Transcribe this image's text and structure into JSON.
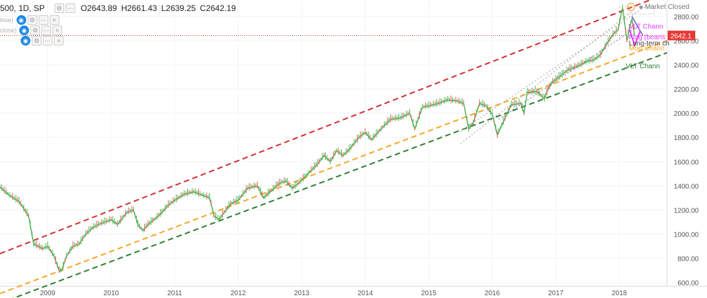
{
  "header": {
    "symbol": "500, 1D, SP",
    "open": "O2643.89",
    "high": "H2661.43",
    "low": "L2639.25",
    "close": "C2642.19",
    "indicator_rows": [
      "lose)",
      "close)",
      ""
    ]
  },
  "status": {
    "market": "Market Closed",
    "alert_icon": "!"
  },
  "price_tag": "2642.1",
  "colors": {
    "up": "#26a69a",
    "down": "#ef5350",
    "bar_green": "#4caf50",
    "red_line": "#d32f2f",
    "orange_line": "#f5a623",
    "green_line": "#2e7d32",
    "price_tag": "#e53935",
    "grid": "#f0f3fa",
    "magenta": "#e040fb",
    "purple": "#7e57c2"
  },
  "annotations": [
    {
      "text": "VLT Chann",
      "color": "#2e7d32"
    },
    {
      "text": "Long-term ch",
      "color": "#444444"
    },
    {
      "text": "Mod Chann",
      "color": "#f5a623"
    },
    {
      "text": "Flag (bearis",
      "color": "#e040fb"
    },
    {
      "text": "VLT Chann",
      "color": "#e040fb"
    }
  ],
  "chart_data": {
    "type": "line",
    "title": "500, 1D, SP",
    "yaxis": {
      "ticks": [
        600,
        800,
        1000,
        1200,
        1400,
        1600,
        1800,
        2000,
        2200,
        2400,
        2600,
        2800
      ],
      "tick_labels": [
        "600.00",
        "800.00",
        "1000.00",
        "1200.00",
        "1400.00",
        "1600.00",
        "1800.00",
        "2000.00",
        "2200.00",
        "2400.00",
        "2600.00",
        "2800.00"
      ],
      "range": [
        570,
        2890
      ]
    },
    "xaxis": {
      "ticks": [
        2009,
        2010,
        2011,
        2012,
        2013,
        2014,
        2015,
        2016,
        2017,
        2018
      ],
      "tick_labels": [
        "2009",
        "2010",
        "2011",
        "2012",
        "2013",
        "2014",
        "2015",
        "2016",
        "2017",
        "2018"
      ],
      "range": [
        2008.25,
        2018.75
      ]
    },
    "grid": true,
    "series": [
      {
        "values": [
          [
            2008.25,
            1390
          ],
          [
            2008.4,
            1320
          ],
          [
            2008.55,
            1270
          ],
          [
            2008.7,
            1150
          ],
          [
            2008.78,
            920
          ],
          [
            2008.85,
            900
          ],
          [
            2008.92,
            880
          ],
          [
            2009.0,
            900
          ],
          [
            2009.1,
            820
          ],
          [
            2009.18,
            700
          ],
          [
            2009.22,
            700
          ],
          [
            2009.3,
            820
          ],
          [
            2009.4,
            900
          ],
          [
            2009.5,
            920
          ],
          [
            2009.6,
            1000
          ],
          [
            2009.7,
            1050
          ],
          [
            2009.8,
            1080
          ],
          [
            2009.9,
            1100
          ],
          [
            2010.0,
            1120
          ],
          [
            2010.1,
            1080
          ],
          [
            2010.25,
            1180
          ],
          [
            2010.35,
            1200
          ],
          [
            2010.42,
            1080
          ],
          [
            2010.5,
            1030
          ],
          [
            2010.58,
            1080
          ],
          [
            2010.7,
            1130
          ],
          [
            2010.8,
            1180
          ],
          [
            2010.9,
            1240
          ],
          [
            2011.0,
            1280
          ],
          [
            2011.15,
            1330
          ],
          [
            2011.3,
            1350
          ],
          [
            2011.45,
            1320
          ],
          [
            2011.55,
            1300
          ],
          [
            2011.62,
            1150
          ],
          [
            2011.7,
            1120
          ],
          [
            2011.78,
            1180
          ],
          [
            2011.88,
            1250
          ],
          [
            2012.0,
            1280
          ],
          [
            2012.15,
            1380
          ],
          [
            2012.3,
            1400
          ],
          [
            2012.4,
            1300
          ],
          [
            2012.5,
            1350
          ],
          [
            2012.65,
            1420
          ],
          [
            2012.75,
            1440
          ],
          [
            2012.85,
            1380
          ],
          [
            2012.95,
            1420
          ],
          [
            2013.1,
            1500
          ],
          [
            2013.25,
            1580
          ],
          [
            2013.35,
            1650
          ],
          [
            2013.45,
            1600
          ],
          [
            2013.55,
            1690
          ],
          [
            2013.65,
            1650
          ],
          [
            2013.75,
            1700
          ],
          [
            2013.9,
            1800
          ],
          [
            2014.0,
            1840
          ],
          [
            2014.1,
            1780
          ],
          [
            2014.25,
            1870
          ],
          [
            2014.4,
            1950
          ],
          [
            2014.55,
            1960
          ],
          [
            2014.7,
            2000
          ],
          [
            2014.78,
            1870
          ],
          [
            2014.9,
            2050
          ],
          [
            2015.0,
            2060
          ],
          [
            2015.15,
            2080
          ],
          [
            2015.3,
            2110
          ],
          [
            2015.45,
            2100
          ],
          [
            2015.55,
            2080
          ],
          [
            2015.63,
            1870
          ],
          [
            2015.7,
            1920
          ],
          [
            2015.8,
            2080
          ],
          [
            2015.9,
            2060
          ],
          [
            2016.0,
            1990
          ],
          [
            2016.08,
            1820
          ],
          [
            2016.15,
            1900
          ],
          [
            2016.3,
            2070
          ],
          [
            2016.45,
            2080
          ],
          [
            2016.5,
            2000
          ],
          [
            2016.55,
            2170
          ],
          [
            2016.7,
            2180
          ],
          [
            2016.82,
            2120
          ],
          [
            2016.88,
            2200
          ],
          [
            2016.95,
            2260
          ],
          [
            2017.1,
            2320
          ],
          [
            2017.2,
            2360
          ],
          [
            2017.35,
            2390
          ],
          [
            2017.5,
            2430
          ],
          [
            2017.6,
            2440
          ],
          [
            2017.7,
            2480
          ],
          [
            2017.8,
            2570
          ],
          [
            2017.9,
            2650
          ],
          [
            2017.98,
            2690
          ],
          [
            2018.05,
            2870
          ],
          [
            2018.08,
            2760
          ],
          [
            2018.12,
            2600
          ],
          [
            2018.16,
            2700
          ],
          [
            2018.2,
            2780
          ],
          [
            2018.24,
            2640
          ]
        ]
      }
    ],
    "trendlines": [
      {
        "style": "dashed",
        "color": "#d32f2f",
        "from": [
          2008.25,
          840
        ],
        "to": [
          2018.75,
          2990
        ]
      },
      {
        "style": "dashed",
        "color": "#f5a623",
        "from": [
          2008.25,
          510
        ],
        "to": [
          2018.75,
          2600
        ]
      },
      {
        "style": "dashed",
        "color": "#2e7d32",
        "from": [
          2008.25,
          430
        ],
        "to": [
          2018.75,
          2500
        ]
      },
      {
        "style": "dotted",
        "color": "#9c9c9c",
        "from": [
          2015.5,
          1750
        ],
        "to": [
          2018.2,
          2840
        ]
      },
      {
        "style": "dotted",
        "color": "#9c9c9c",
        "from": [
          2015.5,
          1850
        ],
        "to": [
          2018.4,
          2880
        ]
      },
      {
        "style": "dotted",
        "color": "#7e57c2",
        "from": [
          2016.1,
          1950
        ],
        "to": [
          2018.3,
          2720
        ]
      }
    ],
    "horizontal_line": {
      "value": 2642.19,
      "color": "#d32f2f",
      "style": "dotted"
    }
  }
}
